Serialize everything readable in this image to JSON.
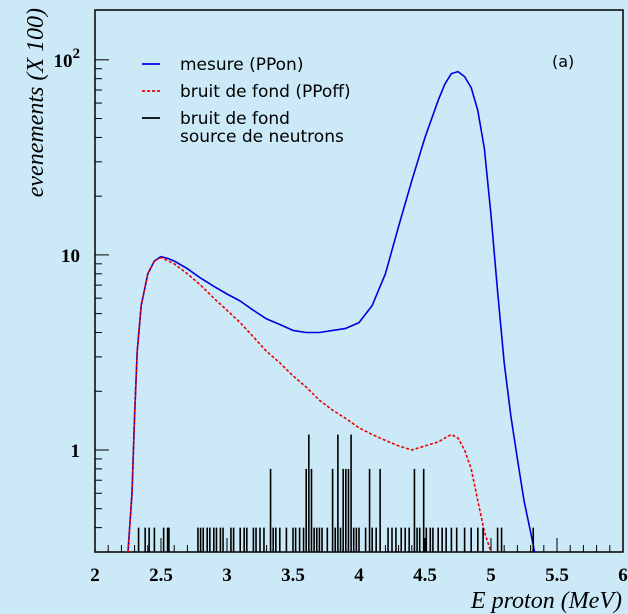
{
  "chart_data": {
    "type": "line",
    "xlabel": "E proton (MeV)",
    "ylabel": "evenements (X 100)",
    "panel_label": "(a)",
    "xlim": [
      2,
      6
    ],
    "ylim": [
      0.3,
      180
    ],
    "y_scale": "log",
    "x_ticks": [
      "2",
      "2.5",
      "3",
      "3.5",
      "4",
      "4.5",
      "5",
      "5.5",
      "6"
    ],
    "y_ticks": [
      {
        "value": 1,
        "base": "1",
        "exp": ""
      },
      {
        "value": 10,
        "base": "10",
        "exp": ""
      },
      {
        "value": 100,
        "base": "10",
        "exp": "2"
      }
    ],
    "legend_position": "top-left",
    "series": [
      {
        "name": "mesure (PPon)",
        "color": "#0000dd",
        "style": "solid",
        "x": [
          2.25,
          2.28,
          2.3,
          2.32,
          2.35,
          2.4,
          2.45,
          2.5,
          2.55,
          2.6,
          2.7,
          2.8,
          2.9,
          3.0,
          3.1,
          3.2,
          3.3,
          3.4,
          3.5,
          3.6,
          3.7,
          3.8,
          3.9,
          4.0,
          4.1,
          4.2,
          4.3,
          4.4,
          4.5,
          4.6,
          4.65,
          4.7,
          4.75,
          4.8,
          4.85,
          4.9,
          4.95,
          5.0,
          5.05,
          5.1,
          5.15,
          5.2,
          5.25,
          5.3,
          5.33
        ],
        "y": [
          0.3,
          0.6,
          1.5,
          3.2,
          5.5,
          8.0,
          9.3,
          9.8,
          9.6,
          9.3,
          8.5,
          7.6,
          6.9,
          6.3,
          5.8,
          5.2,
          4.7,
          4.4,
          4.1,
          4.0,
          4.0,
          4.1,
          4.2,
          4.5,
          5.5,
          8.0,
          14,
          24,
          40,
          62,
          75,
          85,
          87,
          82,
          72,
          55,
          35,
          16,
          6.5,
          2.8,
          1.5,
          0.9,
          0.55,
          0.38,
          0.3
        ]
      },
      {
        "name": "bruit de fond (PPoff)",
        "color": "#ee0000",
        "style": "dashed",
        "x": [
          2.25,
          2.28,
          2.3,
          2.32,
          2.35,
          2.4,
          2.45,
          2.5,
          2.6,
          2.7,
          2.8,
          2.9,
          3.0,
          3.1,
          3.2,
          3.3,
          3.4,
          3.5,
          3.6,
          3.7,
          3.8,
          3.9,
          4.0,
          4.1,
          4.2,
          4.3,
          4.4,
          4.5,
          4.6,
          4.65,
          4.7,
          4.75,
          4.8,
          4.85,
          4.9,
          4.95,
          5.0
        ],
        "y": [
          0.3,
          0.6,
          1.5,
          3.2,
          5.5,
          8.0,
          9.3,
          9.7,
          9.0,
          8.0,
          7.0,
          6.0,
          5.2,
          4.5,
          3.8,
          3.2,
          2.8,
          2.4,
          2.1,
          1.8,
          1.6,
          1.45,
          1.3,
          1.2,
          1.12,
          1.05,
          1.0,
          1.05,
          1.1,
          1.15,
          1.2,
          1.15,
          1.0,
          0.8,
          0.55,
          0.38,
          0.3
        ]
      },
      {
        "name": "bruit de fond\nsource de neutrons",
        "legend_lines": [
          "bruit de fond",
          "source de neutrons"
        ],
        "color": "#000000",
        "style": "histogram",
        "x": [
          2.33,
          2.38,
          2.41,
          2.45,
          2.52,
          2.55,
          2.56,
          2.78,
          2.8,
          2.82,
          2.85,
          2.87,
          2.9,
          2.92,
          2.95,
          2.97,
          3.03,
          3.05,
          3.1,
          3.13,
          3.15,
          3.2,
          3.22,
          3.25,
          3.28,
          3.33,
          3.35,
          3.37,
          3.4,
          3.45,
          3.5,
          3.52,
          3.55,
          3.58,
          3.6,
          3.62,
          3.64,
          3.66,
          3.68,
          3.7,
          3.72,
          3.76,
          3.8,
          3.82,
          3.84,
          3.86,
          3.88,
          3.9,
          3.92,
          3.94,
          3.96,
          3.98,
          4.0,
          4.05,
          4.08,
          4.1,
          4.13,
          4.16,
          4.22,
          4.25,
          4.28,
          4.32,
          4.35,
          4.38,
          4.42,
          4.44,
          4.46,
          4.49,
          4.51,
          4.54,
          4.56,
          4.6,
          4.63,
          4.66,
          4.7,
          4.74,
          4.8,
          4.85,
          4.9,
          4.94,
          5.05,
          5.08,
          5.32
        ],
        "y": [
          0.4,
          0.4,
          0.4,
          0.4,
          0.4,
          0.4,
          0.4,
          0.4,
          0.4,
          0.4,
          0.4,
          0.4,
          0.4,
          0.4,
          0.4,
          0.4,
          0.4,
          0.4,
          0.4,
          0.4,
          0.4,
          0.4,
          0.4,
          0.4,
          0.4,
          0.8,
          0.4,
          0.4,
          0.4,
          0.4,
          0.4,
          0.4,
          0.4,
          0.4,
          0.8,
          1.2,
          0.8,
          0.4,
          0.4,
          0.4,
          0.4,
          0.4,
          0.8,
          0.4,
          1.2,
          0.4,
          0.8,
          0.8,
          0.8,
          1.2,
          0.4,
          0.4,
          0.4,
          0.4,
          0.8,
          0.4,
          0.4,
          0.8,
          0.4,
          0.4,
          0.4,
          0.4,
          0.4,
          0.4,
          0.8,
          0.4,
          0.4,
          0.8,
          0.4,
          0.4,
          0.4,
          0.4,
          0.4,
          0.4,
          0.4,
          0.4,
          0.4,
          0.4,
          0.4,
          0.4,
          0.4,
          0.4,
          0.4
        ]
      }
    ]
  }
}
